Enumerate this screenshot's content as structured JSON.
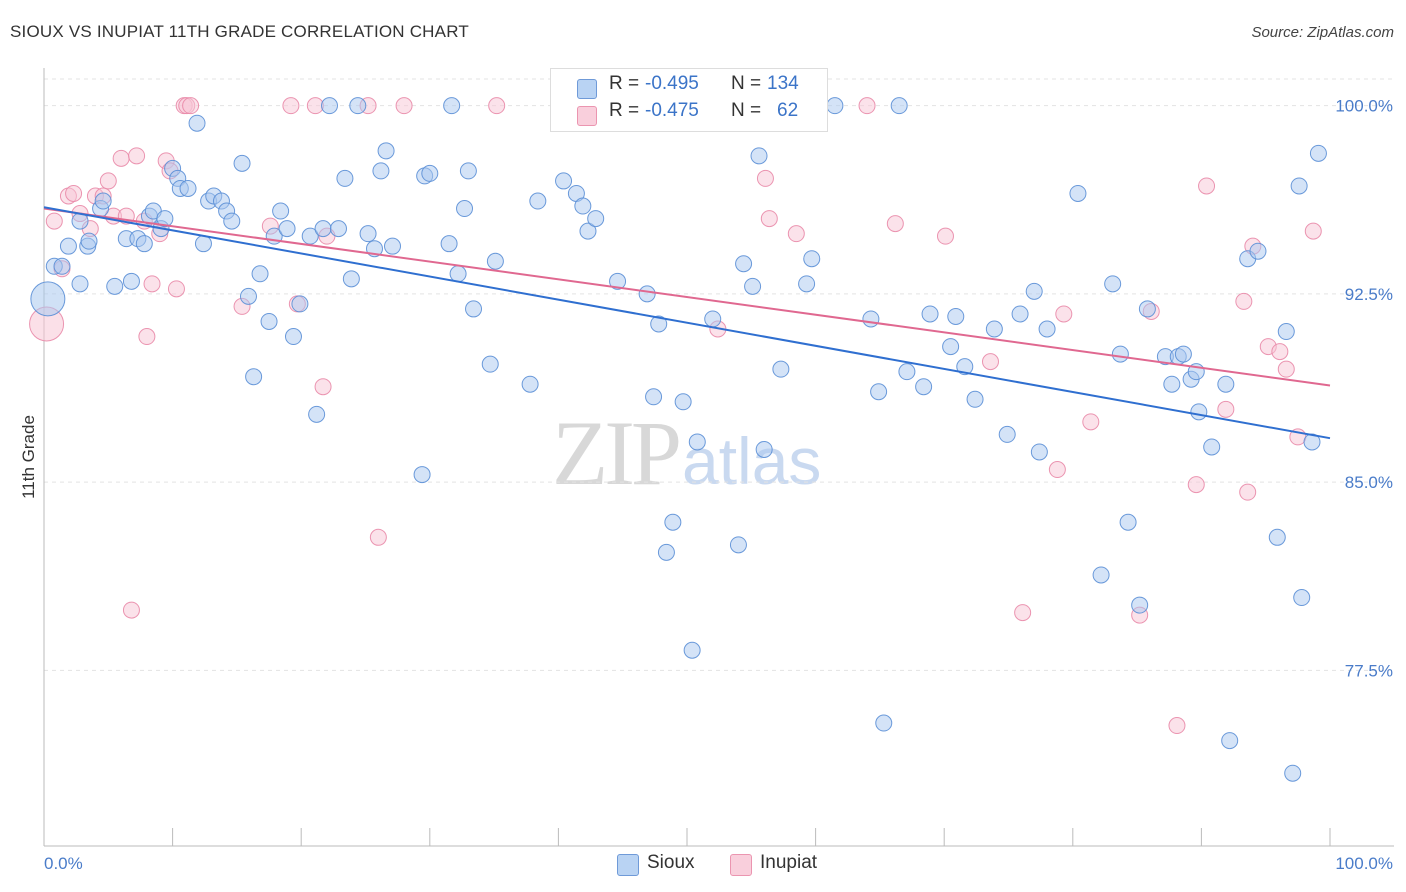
{
  "title": "SIOUX VS INUPIAT 11TH GRADE CORRELATION CHART",
  "source": "Source: ZipAtlas.com",
  "watermark": {
    "zip": "ZIP",
    "atlas": "atlas"
  },
  "legend": {
    "rows": [
      {
        "r_label": "R = ",
        "r_value": "-0.495",
        "n_label": "N = ",
        "n_value": "134",
        "color": "#9bbfea"
      },
      {
        "r_label": "R = ",
        "r_value": "-0.475",
        "n_label": "N = ",
        "n_value": "62",
        "color": "#f5b5c8"
      }
    ]
  },
  "bottom_legend": [
    "Sioux",
    "Inupiat"
  ],
  "colors": {
    "sioux_fill": "#a9c8ef",
    "sioux_stroke": "#5b8fd6",
    "sioux_line": "#2f6fd0",
    "inupiat_fill": "#f8c6d5",
    "inupiat_stroke": "#e98aa8",
    "inupiat_line": "#e06890",
    "tick_text": "#4a7cc9",
    "grid": "#e3e3e3"
  },
  "chart_data": {
    "type": "scatter",
    "title": "SIOUX VS INUPIAT 11TH GRADE CORRELATION CHART",
    "xlabel": "",
    "ylabel": "11th Grade",
    "xlim": [
      0,
      100
    ],
    "ylim": [
      70.5,
      101.5
    ],
    "x_tick_labels": [
      "0.0%",
      "100.0%"
    ],
    "y_ticks": [
      77.5,
      85.0,
      92.5,
      100.0
    ],
    "y_tick_labels": [
      "77.5%",
      "85.0%",
      "92.5%",
      "100.0%"
    ],
    "grid": true,
    "legend_position": "top-center",
    "series": [
      {
        "name": "Sioux",
        "R": -0.495,
        "N": 134,
        "trend": {
          "x": [
            0,
            100
          ],
          "y": [
            95.95,
            86.75
          ]
        },
        "points": [
          [
            0.3,
            92.3,
            "big"
          ],
          [
            0.8,
            93.6
          ],
          [
            1.4,
            93.6
          ],
          [
            2.8,
            95.4
          ],
          [
            1.9,
            94.4
          ],
          [
            2.8,
            92.9
          ],
          [
            3.4,
            94.4
          ],
          [
            3.5,
            94.6
          ],
          [
            4.4,
            95.9
          ],
          [
            4.6,
            96.2
          ],
          [
            5.5,
            92.8
          ],
          [
            6.4,
            94.7
          ],
          [
            6.8,
            93.0
          ],
          [
            7.3,
            94.7
          ],
          [
            7.8,
            94.5
          ],
          [
            8.2,
            95.6
          ],
          [
            8.5,
            95.8
          ],
          [
            9.1,
            95.1
          ],
          [
            9.4,
            95.5
          ],
          [
            10.0,
            97.5
          ],
          [
            10.4,
            97.1
          ],
          [
            10.6,
            96.7
          ],
          [
            11.2,
            96.7
          ],
          [
            11.9,
            99.3
          ],
          [
            12.4,
            94.5
          ],
          [
            12.8,
            96.2
          ],
          [
            13.2,
            96.4
          ],
          [
            13.8,
            96.2
          ],
          [
            14.2,
            95.8
          ],
          [
            14.6,
            95.4
          ],
          [
            15.4,
            97.7
          ],
          [
            15.9,
            92.4
          ],
          [
            16.3,
            89.2
          ],
          [
            16.8,
            93.3
          ],
          [
            17.5,
            91.4
          ],
          [
            17.9,
            94.8
          ],
          [
            18.4,
            95.8
          ],
          [
            18.9,
            95.1
          ],
          [
            19.4,
            90.8
          ],
          [
            19.9,
            92.1
          ],
          [
            20.7,
            94.8
          ],
          [
            21.2,
            87.7
          ],
          [
            21.7,
            95.1
          ],
          [
            22.2,
            100.0
          ],
          [
            22.9,
            95.1
          ],
          [
            23.4,
            97.1
          ],
          [
            23.9,
            93.1
          ],
          [
            24.4,
            100.0
          ],
          [
            25.2,
            94.9
          ],
          [
            25.7,
            94.3
          ],
          [
            26.2,
            97.4
          ],
          [
            26.6,
            98.2
          ],
          [
            27.1,
            94.4
          ],
          [
            29.4,
            85.3
          ],
          [
            29.6,
            97.2
          ],
          [
            30.0,
            97.3
          ],
          [
            31.5,
            94.5
          ],
          [
            31.7,
            100.0
          ],
          [
            32.2,
            93.3
          ],
          [
            32.7,
            95.9
          ],
          [
            33.0,
            97.4
          ],
          [
            33.4,
            91.9
          ],
          [
            34.7,
            89.7
          ],
          [
            35.1,
            93.8
          ],
          [
            37.8,
            88.9
          ],
          [
            38.4,
            96.2
          ],
          [
            40.4,
            97.0
          ],
          [
            41.4,
            96.5
          ],
          [
            41.9,
            96.0
          ],
          [
            42.3,
            95.0
          ],
          [
            42.9,
            95.5
          ],
          [
            44.1,
            100.0
          ],
          [
            44.6,
            93.0
          ],
          [
            46.9,
            92.5
          ],
          [
            47.4,
            88.4
          ],
          [
            47.8,
            91.3
          ],
          [
            48.4,
            82.2
          ],
          [
            48.9,
            83.4
          ],
          [
            49.7,
            88.2
          ],
          [
            50.4,
            78.3
          ],
          [
            50.8,
            86.6
          ],
          [
            52.0,
            91.5
          ],
          [
            54.0,
            82.5
          ],
          [
            54.4,
            93.7
          ],
          [
            55.1,
            92.8
          ],
          [
            55.6,
            98.0
          ],
          [
            56.0,
            86.3
          ],
          [
            57.3,
            89.5
          ],
          [
            59.3,
            92.9
          ],
          [
            59.7,
            93.9
          ],
          [
            61.5,
            100.0
          ],
          [
            64.3,
            91.5
          ],
          [
            64.9,
            88.6
          ],
          [
            65.3,
            75.4
          ],
          [
            66.5,
            100.0
          ],
          [
            67.1,
            89.4
          ],
          [
            68.4,
            88.8
          ],
          [
            68.9,
            91.7
          ],
          [
            70.5,
            90.4
          ],
          [
            70.9,
            91.6
          ],
          [
            71.6,
            89.6
          ],
          [
            72.4,
            88.3
          ],
          [
            73.9,
            91.1
          ],
          [
            74.9,
            86.9
          ],
          [
            75.9,
            91.7
          ],
          [
            77.0,
            92.6
          ],
          [
            77.4,
            86.2
          ],
          [
            78.0,
            91.1
          ],
          [
            80.4,
            96.5
          ],
          [
            82.2,
            81.3
          ],
          [
            83.1,
            92.9
          ],
          [
            83.7,
            90.1
          ],
          [
            84.3,
            83.4
          ],
          [
            85.2,
            80.1
          ],
          [
            85.8,
            91.9
          ],
          [
            87.2,
            90.0
          ],
          [
            87.7,
            88.9
          ],
          [
            88.2,
            90.0
          ],
          [
            88.6,
            90.1
          ],
          [
            89.2,
            89.1
          ],
          [
            89.6,
            89.4
          ],
          [
            89.8,
            87.8
          ],
          [
            90.8,
            86.4
          ],
          [
            91.9,
            88.9
          ],
          [
            92.2,
            74.7
          ],
          [
            93.6,
            93.9
          ],
          [
            94.4,
            94.2
          ],
          [
            95.9,
            82.8
          ],
          [
            96.6,
            91.0
          ],
          [
            97.1,
            73.4
          ],
          [
            97.6,
            96.8
          ],
          [
            97.8,
            80.4
          ],
          [
            98.6,
            86.6
          ],
          [
            99.1,
            98.1
          ]
        ]
      },
      {
        "name": "Inupiat",
        "R": -0.475,
        "N": 62,
        "trend": {
          "x": [
            0,
            100
          ],
          "y": [
            95.9,
            88.85
          ]
        },
        "points": [
          [
            0.2,
            91.3,
            "big"
          ],
          [
            0.8,
            95.4
          ],
          [
            1.4,
            93.5
          ],
          [
            1.9,
            96.4
          ],
          [
            2.3,
            96.5
          ],
          [
            2.8,
            95.7
          ],
          [
            3.6,
            95.1
          ],
          [
            4.0,
            96.4
          ],
          [
            4.6,
            96.4
          ],
          [
            5.0,
            97.0
          ],
          [
            5.4,
            95.6
          ],
          [
            6.0,
            97.9
          ],
          [
            6.4,
            95.6
          ],
          [
            6.8,
            79.9
          ],
          [
            7.2,
            98.0
          ],
          [
            7.8,
            95.4
          ],
          [
            8.0,
            90.8
          ],
          [
            8.4,
            92.9
          ],
          [
            9.0,
            94.9
          ],
          [
            9.5,
            97.8
          ],
          [
            9.8,
            97.4
          ],
          [
            10.3,
            92.7
          ],
          [
            10.9,
            100.0
          ],
          [
            11.1,
            100.0
          ],
          [
            11.4,
            100.0
          ],
          [
            15.4,
            92.0
          ],
          [
            17.6,
            95.2
          ],
          [
            19.2,
            100.0
          ],
          [
            19.7,
            92.1
          ],
          [
            21.1,
            100.0
          ],
          [
            21.7,
            88.8
          ],
          [
            22.0,
            94.8
          ],
          [
            25.2,
            100.0
          ],
          [
            26.0,
            82.8
          ],
          [
            28.0,
            100.0
          ],
          [
            35.2,
            100.0
          ],
          [
            52.4,
            91.1
          ],
          [
            56.1,
            97.1
          ],
          [
            56.4,
            95.5
          ],
          [
            58.5,
            94.9
          ],
          [
            64.0,
            100.0
          ],
          [
            66.2,
            95.3
          ],
          [
            70.1,
            94.8
          ],
          [
            73.6,
            89.8
          ],
          [
            76.1,
            79.8
          ],
          [
            78.8,
            85.5
          ],
          [
            79.3,
            91.7
          ],
          [
            81.4,
            87.4
          ],
          [
            85.2,
            79.7
          ],
          [
            86.1,
            91.8
          ],
          [
            88.1,
            75.3
          ],
          [
            89.6,
            84.9
          ],
          [
            90.4,
            96.8
          ],
          [
            91.9,
            87.9
          ],
          [
            93.3,
            92.2
          ],
          [
            93.6,
            84.6
          ],
          [
            94.0,
            94.4
          ],
          [
            95.2,
            90.4
          ],
          [
            96.1,
            90.2
          ],
          [
            96.6,
            89.5
          ],
          [
            97.5,
            86.8
          ],
          [
            98.7,
            95.0
          ]
        ]
      }
    ]
  }
}
